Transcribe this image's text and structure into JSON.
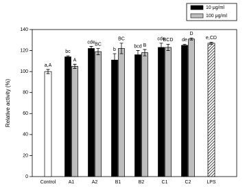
{
  "chart_data": {
    "type": "bar",
    "y_label": "Relative activity (%)",
    "categories": [
      "Control",
      "A1",
      "A2",
      "B1",
      "B2",
      "C1",
      "C2",
      "LPS"
    ],
    "ylim": [
      0,
      140
    ],
    "yticks": [
      0,
      20,
      40,
      60,
      80,
      100,
      120,
      140
    ],
    "legend": "top-right",
    "series": [
      {
        "name": "10 μg/ml",
        "color": "#000000",
        "values": [
          null,
          114,
          122,
          111,
          116,
          123,
          125,
          null
        ],
        "errors": [
          null,
          1,
          2,
          6,
          4,
          4,
          1,
          null
        ],
        "letters": [
          null,
          "bc",
          "cde",
          "b",
          "bcd",
          "cde",
          "de",
          null
        ]
      },
      {
        "name": "100 μg/ml",
        "color": "#bdbdbd",
        "values": [
          null,
          105,
          119,
          122,
          118,
          123,
          131,
          null
        ],
        "errors": [
          null,
          2,
          3,
          5,
          3,
          3,
          1,
          null
        ],
        "letters": [
          null,
          "A",
          "BC",
          "BC",
          "B",
          "BCD",
          "D",
          null
        ]
      },
      {
        "fills": [
          "#ffffff",
          null,
          null,
          null,
          null,
          null,
          null,
          "hatched"
        ],
        "values": [
          100,
          null,
          null,
          null,
          null,
          null,
          null,
          127
        ],
        "errors": [
          2,
          null,
          null,
          null,
          null,
          null,
          null,
          1
        ],
        "letters": [
          "a,A",
          null,
          null,
          null,
          null,
          null,
          null,
          "e,CD"
        ]
      }
    ]
  }
}
